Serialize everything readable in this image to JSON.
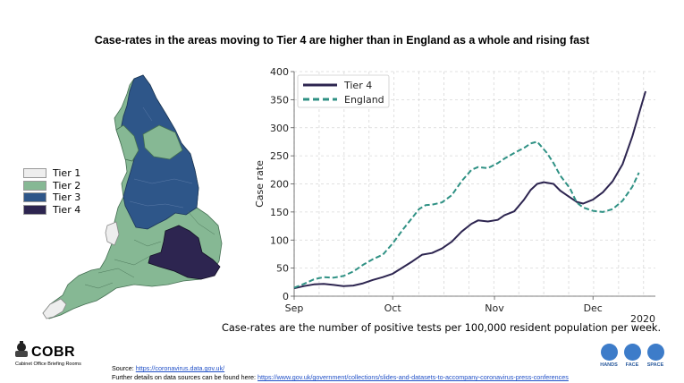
{
  "slide": {
    "title": "Case-rates in the areas moving to Tier 4 are higher than in England as a whole and rising fast",
    "caption": "Case-rates are the number of positive tests per 100,000 resident population per week.",
    "source_prefix": "Source: ",
    "source_link": "https://coronavirus.data.gov.uk/",
    "details_prefix": "Further details on data sources can be found here: ",
    "details_link": "https://www.gov.uk/government/collections/slides-and-datasets-to-accompany-coronavirus-press-conferences",
    "logo_text": "COBR",
    "logo_sub": "Cabinet Office Briefing Rooms",
    "hfs": [
      "HANDS",
      "FACE",
      "SPACE"
    ]
  },
  "map_legend": [
    {
      "label": "Tier 1",
      "color": "#eeeeee"
    },
    {
      "label": "Tier 2",
      "color": "#86b894"
    },
    {
      "label": "Tier 3",
      "color": "#2e5689"
    },
    {
      "label": "Tier 4",
      "color": "#2d2550"
    }
  ],
  "chart_data": {
    "type": "line",
    "ylabel": "Case rate",
    "xlabel": "",
    "ylim": [
      0,
      400
    ],
    "yticks": [
      0,
      50,
      100,
      150,
      200,
      250,
      300,
      350,
      400
    ],
    "xticks": [
      {
        "label": "Sep",
        "day": 0
      },
      {
        "label": "Oct",
        "day": 30
      },
      {
        "label": "Nov",
        "day": 61
      },
      {
        "label": "Dec",
        "day": 91
      }
    ],
    "year_label": "2020",
    "grid": true,
    "legend_position": "top-left",
    "series": [
      {
        "name": "Tier 4",
        "color": "#2d2550",
        "dash": "solid",
        "points": [
          [
            0,
            14
          ],
          [
            3,
            18
          ],
          [
            6,
            21
          ],
          [
            9,
            22
          ],
          [
            12,
            20
          ],
          [
            15,
            18
          ],
          [
            18,
            19
          ],
          [
            21,
            23
          ],
          [
            24,
            29
          ],
          [
            27,
            34
          ],
          [
            30,
            40
          ],
          [
            33,
            51
          ],
          [
            36,
            62
          ],
          [
            39,
            74
          ],
          [
            42,
            77
          ],
          [
            45,
            85
          ],
          [
            48,
            97
          ],
          [
            51,
            115
          ],
          [
            54,
            129
          ],
          [
            56,
            135
          ],
          [
            59,
            133
          ],
          [
            62,
            136
          ],
          [
            64,
            144
          ],
          [
            67,
            151
          ],
          [
            70,
            172
          ],
          [
            72,
            189
          ],
          [
            74,
            200
          ],
          [
            76,
            203
          ],
          [
            79,
            200
          ],
          [
            81,
            188
          ],
          [
            84,
            176
          ],
          [
            86,
            168
          ],
          [
            88,
            165
          ],
          [
            91,
            172
          ],
          [
            94,
            185
          ],
          [
            97,
            205
          ],
          [
            100,
            235
          ],
          [
            103,
            285
          ],
          [
            105,
            325
          ],
          [
            107,
            365
          ]
        ]
      },
      {
        "name": "England",
        "color": "#2f9184",
        "dash": "dashed",
        "points": [
          [
            0,
            15
          ],
          [
            3,
            22
          ],
          [
            6,
            30
          ],
          [
            9,
            34
          ],
          [
            12,
            33
          ],
          [
            15,
            36
          ],
          [
            18,
            44
          ],
          [
            21,
            56
          ],
          [
            24,
            66
          ],
          [
            27,
            74
          ],
          [
            30,
            94
          ],
          [
            33,
            118
          ],
          [
            36,
            140
          ],
          [
            38,
            155
          ],
          [
            40,
            162
          ],
          [
            42,
            163
          ],
          [
            45,
            167
          ],
          [
            48,
            180
          ],
          [
            51,
            205
          ],
          [
            54,
            225
          ],
          [
            56,
            230
          ],
          [
            59,
            228
          ],
          [
            62,
            237
          ],
          [
            64,
            245
          ],
          [
            67,
            255
          ],
          [
            70,
            264
          ],
          [
            72,
            272
          ],
          [
            74,
            275
          ],
          [
            77,
            255
          ],
          [
            79,
            237
          ],
          [
            81,
            215
          ],
          [
            84,
            192
          ],
          [
            86,
            167
          ],
          [
            88,
            158
          ],
          [
            91,
            152
          ],
          [
            94,
            150
          ],
          [
            97,
            155
          ],
          [
            100,
            170
          ],
          [
            103,
            195
          ],
          [
            105,
            220
          ]
        ]
      }
    ]
  }
}
